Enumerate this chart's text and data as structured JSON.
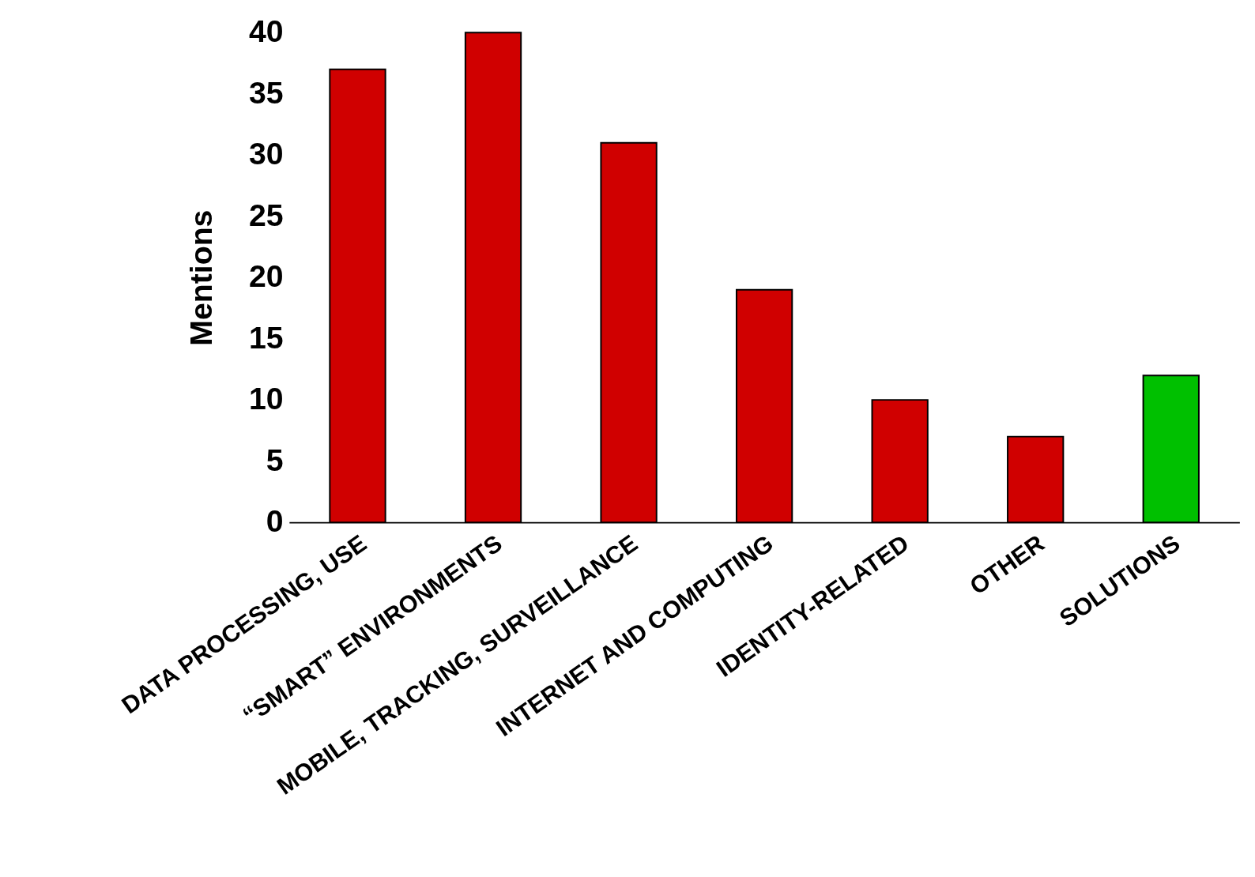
{
  "chart_data": {
    "type": "bar",
    "ylabel": "Mentions",
    "categories": [
      "DATA PROCESSING, USE",
      "“SMART” ENVIRONMENTS",
      "MOBILE, TRACKING, SURVEILLANCE",
      "INTERNET AND COMPUTING",
      "IDENTITY-RELATED",
      "OTHER",
      "SOLUTIONS"
    ],
    "values": [
      37,
      40,
      31,
      19,
      10,
      7,
      12
    ],
    "colors": [
      "#d00000",
      "#d00000",
      "#d00000",
      "#d00000",
      "#d00000",
      "#d00000",
      "#00c000"
    ],
    "ylim": [
      0,
      40
    ],
    "yticks": [
      0,
      5,
      10,
      15,
      20,
      25,
      30,
      35,
      40
    ],
    "grid": false
  }
}
